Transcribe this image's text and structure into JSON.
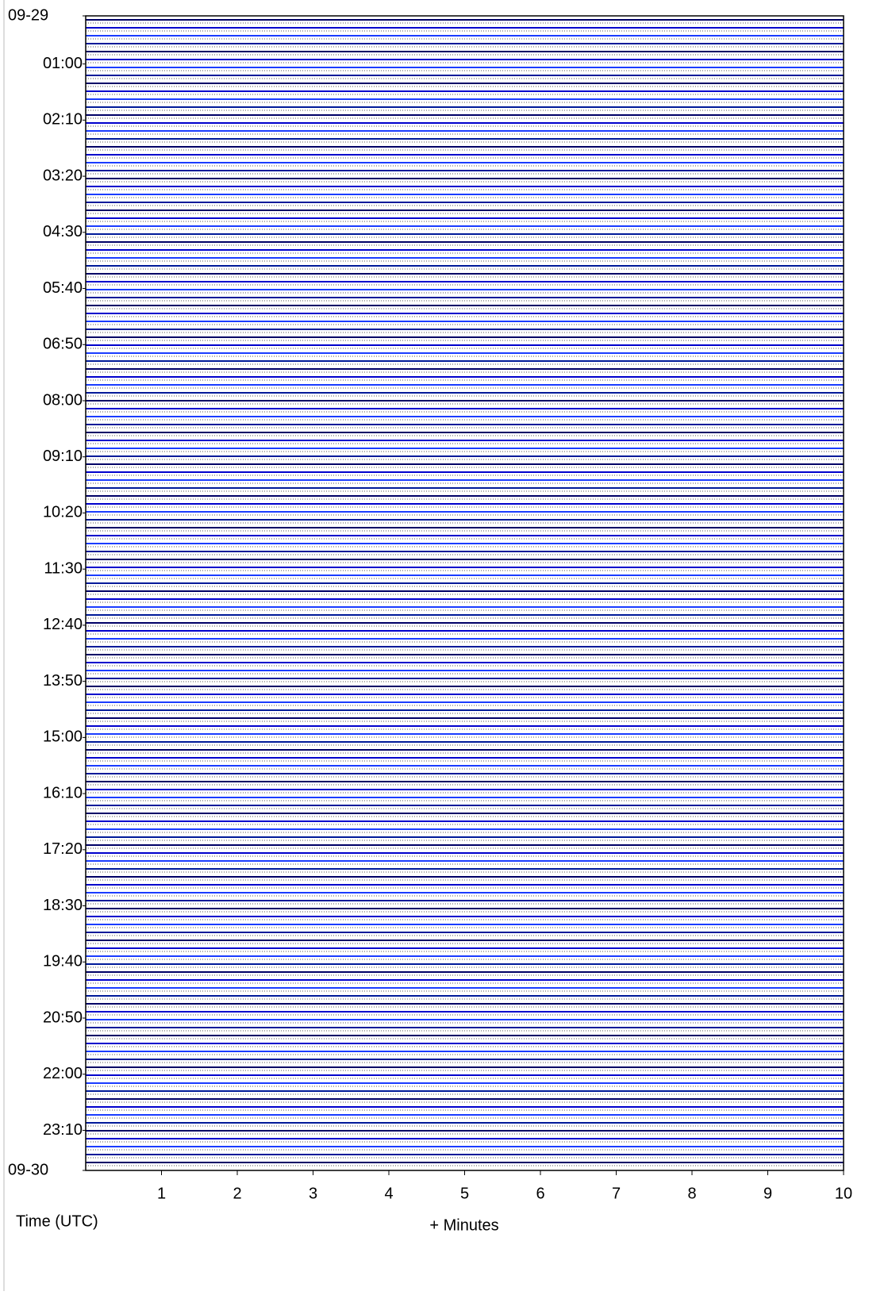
{
  "chart_data": {
    "type": "helicorder",
    "xlabel": "+ Minutes",
    "ylabel": "Time (UTC)",
    "xlim": [
      0,
      10
    ],
    "xticks": [
      1,
      2,
      3,
      4,
      5,
      6,
      7,
      8,
      9,
      10
    ],
    "ylim": [
      0,
      1440
    ],
    "yticks": [
      {
        "value": 0,
        "label": "09-29"
      },
      {
        "value": 60,
        "label": "01:00"
      },
      {
        "value": 130,
        "label": "02:10"
      },
      {
        "value": 200,
        "label": "03:20"
      },
      {
        "value": 270,
        "label": "04:30"
      },
      {
        "value": 340,
        "label": "05:40"
      },
      {
        "value": 410,
        "label": "06:50"
      },
      {
        "value": 480,
        "label": "08:00"
      },
      {
        "value": 550,
        "label": "09:10"
      },
      {
        "value": 620,
        "label": "10:20"
      },
      {
        "value": 690,
        "label": "11:30"
      },
      {
        "value": 760,
        "label": "12:40"
      },
      {
        "value": 830,
        "label": "13:50"
      },
      {
        "value": 900,
        "label": "15:00"
      },
      {
        "value": 970,
        "label": "16:10"
      },
      {
        "value": 1040,
        "label": "17:20"
      },
      {
        "value": 1110,
        "label": "18:30"
      },
      {
        "value": 1180,
        "label": "19:40"
      },
      {
        "value": 1250,
        "label": "20:50"
      },
      {
        "value": 1320,
        "label": "22:00"
      },
      {
        "value": 1390,
        "label": "23:10"
      },
      {
        "value": 1440,
        "label": "09-30"
      }
    ],
    "colors": [
      "#000066",
      "#0000cc",
      "#1a3cff",
      "#001a99"
    ]
  }
}
